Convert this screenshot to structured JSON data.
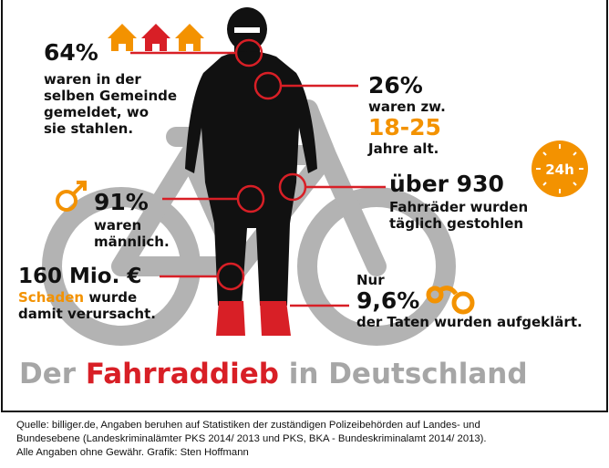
{
  "colors": {
    "accent_orange": "#f39200",
    "accent_red": "#d81f26",
    "bike_gray": "#b3b3b3",
    "silhouette": "#111111"
  },
  "icons": [
    "house-icon",
    "bicycle-illustration",
    "thief-silhouette",
    "male-symbol-icon",
    "clock-24h-icon",
    "handcuffs-icon"
  ],
  "stats": {
    "residence": {
      "value": "64%",
      "text": [
        "waren in der",
        "selben Gemeinde",
        "gemeldet, wo",
        "sie stahlen."
      ]
    },
    "age": {
      "value": "26%",
      "text1": "waren zw.",
      "range": "18-25",
      "text2": "Jahre alt."
    },
    "daily": {
      "value": "über 930",
      "text": [
        "Fahrräder wurden",
        "täglich gestohlen"
      ],
      "clock_label": "24h"
    },
    "male": {
      "value": "91%",
      "text": [
        "waren",
        "männlich."
      ]
    },
    "damage": {
      "value": "160 Mio. €",
      "highlight": "Schaden",
      "text1": " wurde",
      "text2": "damit verursacht."
    },
    "solved": {
      "prefix": "Nur",
      "value": "9,6%",
      "text": "der Taten wurden aufgeklärt."
    }
  },
  "title": {
    "part1": "Der ",
    "highlight": "Fahrraddieb",
    "part2": " in Deutschland"
  },
  "footer": [
    "Quelle: billiger.de, Angaben beruhen auf Statistiken der zuständigen Polizeibehörden auf Landes- und",
    "Bundesebene (Landeskriminalämter PKS 2014/ 2013 und PKS, BKA - Bundeskriminalamt 2014/ 2013).",
    "Alle Angaben ohne Gewähr. Grafik: Sten Hoffmann"
  ]
}
